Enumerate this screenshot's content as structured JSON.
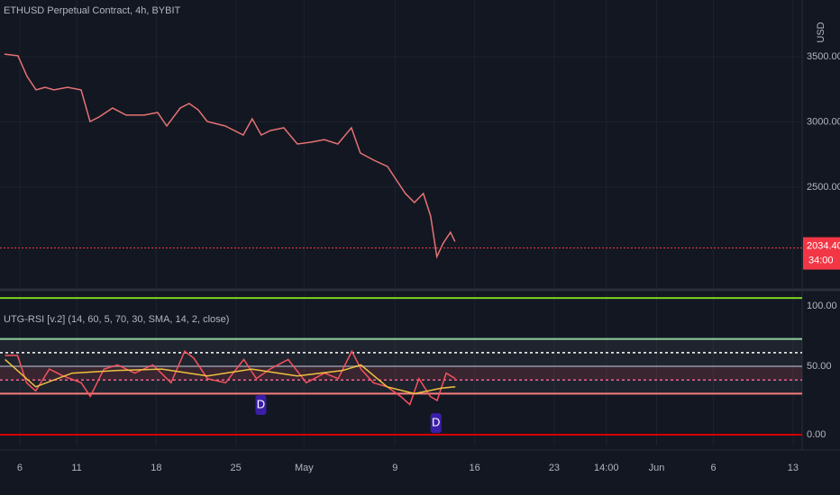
{
  "chart_data": [
    {
      "type": "line",
      "title": "ETHUSD Perpetual Contract, 4h, BYBIT",
      "y_label": "USD",
      "xlim": [
        4.26,
        74.8
      ],
      "ylim": [
        1728,
        3934
      ],
      "yticks": [
        {
          "value": 2500,
          "label": "2500.00"
        },
        {
          "value": 3000,
          "label": "3000.00"
        },
        {
          "value": 3500,
          "label": "3500.00"
        }
      ],
      "grid": true,
      "color": "#e57373",
      "x": [
        4.65,
        5.84,
        6.63,
        7.43,
        8.22,
        9.01,
        10.2,
        11.39,
        12.18,
        12.97,
        14.16,
        15.35,
        16.94,
        18.12,
        18.92,
        20.11,
        20.9,
        21.69,
        22.48,
        24.07,
        25.65,
        26.44,
        27.24,
        28.03,
        29.22,
        30.41,
        31.6,
        32.78,
        33.97,
        35.16,
        35.95,
        37.14,
        38.33,
        39.12,
        39.91,
        40.7,
        41.49,
        42.13,
        42.68,
        43.24,
        43.87,
        44.27
      ],
      "values": [
        3520,
        3507,
        3350,
        3245,
        3265,
        3245,
        3265,
        3245,
        3003,
        3038,
        3107,
        3052,
        3052,
        3072,
        2969,
        3107,
        3141,
        3093,
        3003,
        2969,
        2900,
        3024,
        2900,
        2934,
        2955,
        2831,
        2845,
        2865,
        2831,
        2955,
        2762,
        2707,
        2659,
        2555,
        2452,
        2383,
        2452,
        2279,
        1968,
        2072,
        2155,
        2084
      ],
      "last_price": {
        "value": 2034.4,
        "label": "2034.40"
      },
      "countdown": "34:00"
    },
    {
      "type": "line",
      "title": "UTG-RSI [v.2] (14, 60, 5, 70, 30, SMA, 14, 2, close)",
      "xlim": [
        4.26,
        74.8
      ],
      "ylim": [
        -7.9,
        104
      ],
      "yticks": [
        {
          "value": 0,
          "label": "0.00"
        },
        {
          "value": 50,
          "label": "50.00"
        },
        {
          "value": 100,
          "label": "100.00"
        }
      ],
      "xticks": [
        {
          "value": 6,
          "label": "6"
        },
        {
          "value": 11,
          "label": "11"
        },
        {
          "value": 18,
          "label": "18"
        },
        {
          "value": 25,
          "label": "25"
        },
        {
          "value": 31,
          "label": "May"
        },
        {
          "value": 39,
          "label": "9"
        },
        {
          "value": 46,
          "label": "16"
        },
        {
          "value": 53,
          "label": "23"
        },
        {
          "value": 57.58,
          "label": "14:00"
        },
        {
          "value": 62,
          "label": "Jun"
        },
        {
          "value": 67,
          "label": "6"
        },
        {
          "value": 74,
          "label": "13"
        }
      ],
      "levels": [
        {
          "value": 100,
          "color": "#7ed321",
          "style": "solid"
        },
        {
          "value": 70,
          "color": "#8fd19e",
          "style": "solid"
        },
        {
          "value": 60,
          "color": "#ffffff",
          "style": "dotted"
        },
        {
          "value": 50,
          "color": "#787b86",
          "style": "solid"
        },
        {
          "value": 40,
          "color": "#f06292",
          "style": "dotted"
        },
        {
          "value": 30,
          "color": "#f77c80",
          "style": "solid"
        },
        {
          "value": 0,
          "color": "#d50000",
          "style": "solid"
        }
      ],
      "series": [
        {
          "color": "#f7525f",
          "x": [
            4.7,
            5.8,
            6.6,
            7.4,
            8.6,
            9.8,
            11.4,
            12.2,
            13.4,
            14.6,
            16.1,
            17.7,
            19.3,
            20.5,
            21.3,
            22.5,
            24.1,
            25.7,
            26.8,
            28.0,
            29.6,
            31.2,
            32.8,
            34.0,
            35.2,
            36.0,
            37.1,
            38.3,
            39.5,
            40.3,
            41.1,
            42.1,
            42.7,
            43.5,
            44.3
          ],
          "values": [
            58,
            58,
            38,
            32,
            48,
            43,
            38,
            28,
            48,
            51,
            45,
            51,
            38,
            61,
            56,
            41,
            38,
            55,
            41,
            48,
            55,
            38,
            45,
            41,
            61,
            48,
            38,
            35,
            28,
            22,
            41,
            28,
            25,
            45,
            41
          ]
        },
        {
          "color": "#f0c040",
          "x": [
            4.7,
            7.4,
            10.6,
            14.6,
            18.5,
            22.5,
            26.4,
            30.4,
            34.4,
            36.0,
            38.3,
            40.7,
            43.1,
            44.3
          ],
          "values": [
            55,
            35,
            45,
            47,
            48,
            43,
            48,
            43,
            47,
            51,
            35,
            30,
            34,
            35
          ]
        }
      ],
      "annotations": [
        {
          "x": 27.2,
          "y": 21.7,
          "label": "D"
        },
        {
          "x": 42.6,
          "y": 8.5,
          "label": "D"
        }
      ]
    }
  ]
}
